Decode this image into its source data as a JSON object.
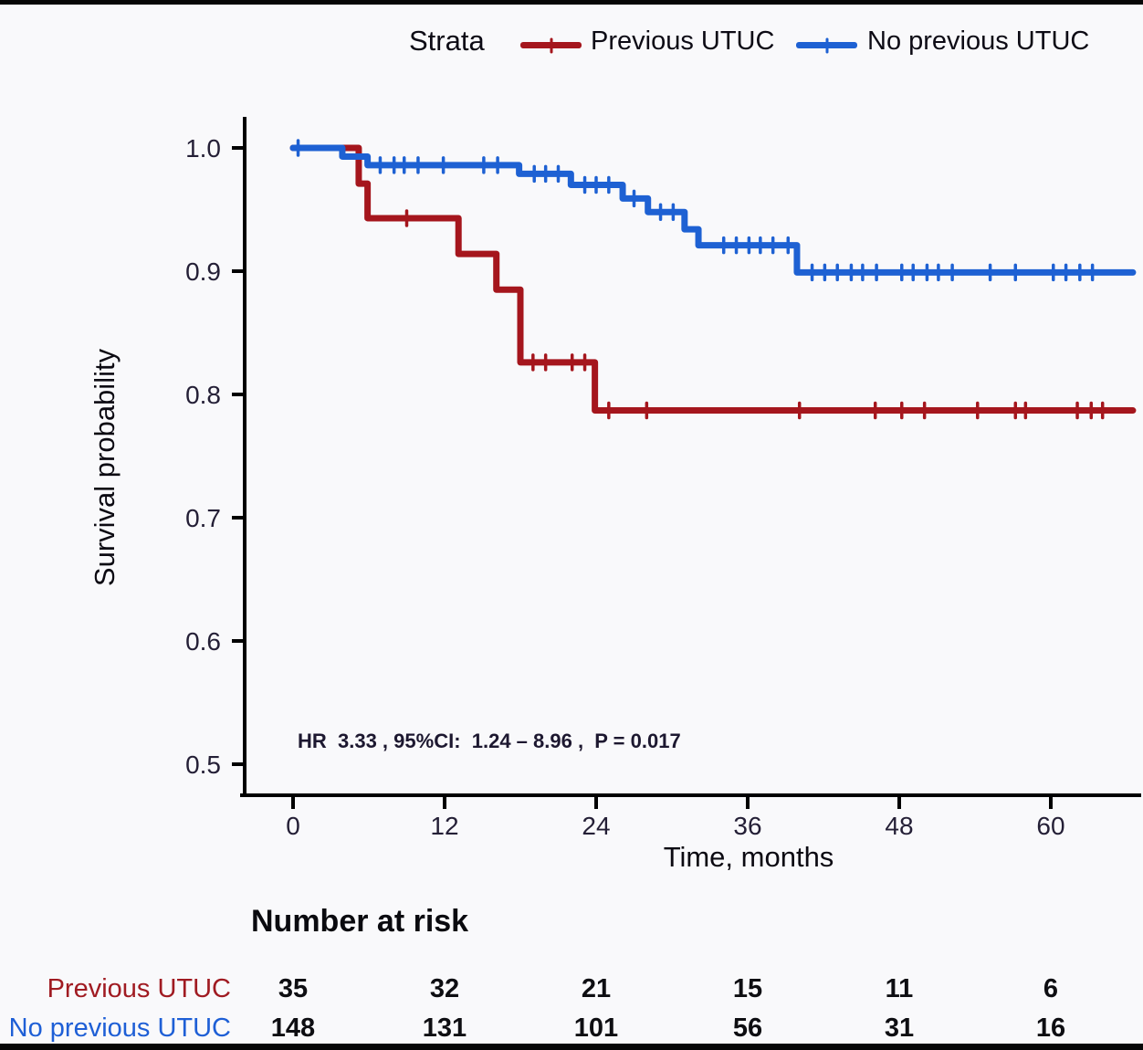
{
  "legend": {
    "title": "Strata",
    "items": [
      {
        "label": "Previous UTUC",
        "color": "#a5161d"
      },
      {
        "label": "No previous UTUC",
        "color": "#1e61d3"
      }
    ]
  },
  "chart_data": {
    "type": "line",
    "subtype": "kaplan-meier-step-survival",
    "title": "",
    "xlabel": "Time, months",
    "ylabel": "Survival probability",
    "xlim": [
      0,
      66.5
    ],
    "ylim": [
      0.48,
      1.0
    ],
    "x_ticks": [
      0,
      12,
      24,
      36,
      48,
      60
    ],
    "y_ticks": [
      1.0,
      0.9,
      0.8,
      0.7,
      0.6,
      0.5
    ],
    "grid": false,
    "legend_position": "top",
    "hr_annotation": "HR  3.33 , 95%CI:  1.24 – 8.96 ,  P = 0.017",
    "series": [
      {
        "name": "Previous UTUC",
        "color": "#a5161d",
        "steps": [
          [
            0,
            1.0
          ],
          [
            5.2,
            0.971
          ],
          [
            5.9,
            0.943
          ],
          [
            13.1,
            0.914
          ],
          [
            16.1,
            0.885
          ],
          [
            18,
            0.826
          ],
          [
            23.9,
            0.787
          ]
        ],
        "end_time": 66.5,
        "censor_marks": [
          [
            9,
            0.943
          ],
          [
            19,
            0.826
          ],
          [
            20,
            0.826
          ],
          [
            22.1,
            0.826
          ],
          [
            23.1,
            0.826
          ],
          [
            25,
            0.787
          ],
          [
            28,
            0.787
          ],
          [
            40.1,
            0.787
          ],
          [
            46.1,
            0.787
          ],
          [
            48.2,
            0.787
          ],
          [
            50,
            0.787
          ],
          [
            54.2,
            0.787
          ],
          [
            57.2,
            0.787
          ],
          [
            58,
            0.787
          ],
          [
            62.1,
            0.787
          ],
          [
            63.2,
            0.787
          ],
          [
            64.1,
            0.787
          ]
        ]
      },
      {
        "name": "No previous UTUC",
        "color": "#1e61d3",
        "steps": [
          [
            0,
            1.0
          ],
          [
            3.9,
            0.993
          ],
          [
            5.9,
            0.986
          ],
          [
            17.9,
            0.979
          ],
          [
            22,
            0.97
          ],
          [
            26.1,
            0.959
          ],
          [
            28.1,
            0.948
          ],
          [
            31,
            0.934
          ],
          [
            32.1,
            0.921
          ],
          [
            39.9,
            0.899
          ]
        ],
        "end_time": 66.5,
        "censor_marks": [
          [
            0.4,
            1.0
          ],
          [
            6.9,
            0.986
          ],
          [
            8,
            0.986
          ],
          [
            8.8,
            0.986
          ],
          [
            9.9,
            0.986
          ],
          [
            11.9,
            0.986
          ],
          [
            15.1,
            0.986
          ],
          [
            16.2,
            0.986
          ],
          [
            19.1,
            0.979
          ],
          [
            20,
            0.979
          ],
          [
            21,
            0.979
          ],
          [
            23.1,
            0.97
          ],
          [
            24,
            0.97
          ],
          [
            25,
            0.97
          ],
          [
            27,
            0.959
          ],
          [
            29.1,
            0.948
          ],
          [
            30.1,
            0.948
          ],
          [
            34.1,
            0.921
          ],
          [
            35.1,
            0.921
          ],
          [
            36.1,
            0.921
          ],
          [
            37,
            0.921
          ],
          [
            38,
            0.921
          ],
          [
            39.2,
            0.921
          ],
          [
            41.1,
            0.899
          ],
          [
            42.1,
            0.899
          ],
          [
            43.1,
            0.899
          ],
          [
            44.2,
            0.899
          ],
          [
            45.1,
            0.899
          ],
          [
            46.2,
            0.899
          ],
          [
            48.2,
            0.899
          ],
          [
            49.1,
            0.899
          ],
          [
            50.2,
            0.899
          ],
          [
            51.1,
            0.899
          ],
          [
            52.2,
            0.899
          ],
          [
            55.2,
            0.899
          ],
          [
            57.2,
            0.899
          ],
          [
            60.2,
            0.899
          ],
          [
            61.2,
            0.899
          ],
          [
            62.3,
            0.899
          ],
          [
            63.3,
            0.899
          ]
        ]
      }
    ],
    "risk_table": {
      "title": "Number at risk",
      "time_points": [
        0,
        12,
        24,
        36,
        48,
        60
      ],
      "rows": [
        {
          "label": "Previous UTUC",
          "color": "#a01b22",
          "values": [
            35,
            32,
            21,
            15,
            11,
            6
          ]
        },
        {
          "label": "No previous UTUC",
          "color": "#1e5fd6",
          "values": [
            148,
            131,
            101,
            56,
            31,
            16
          ]
        }
      ]
    }
  }
}
